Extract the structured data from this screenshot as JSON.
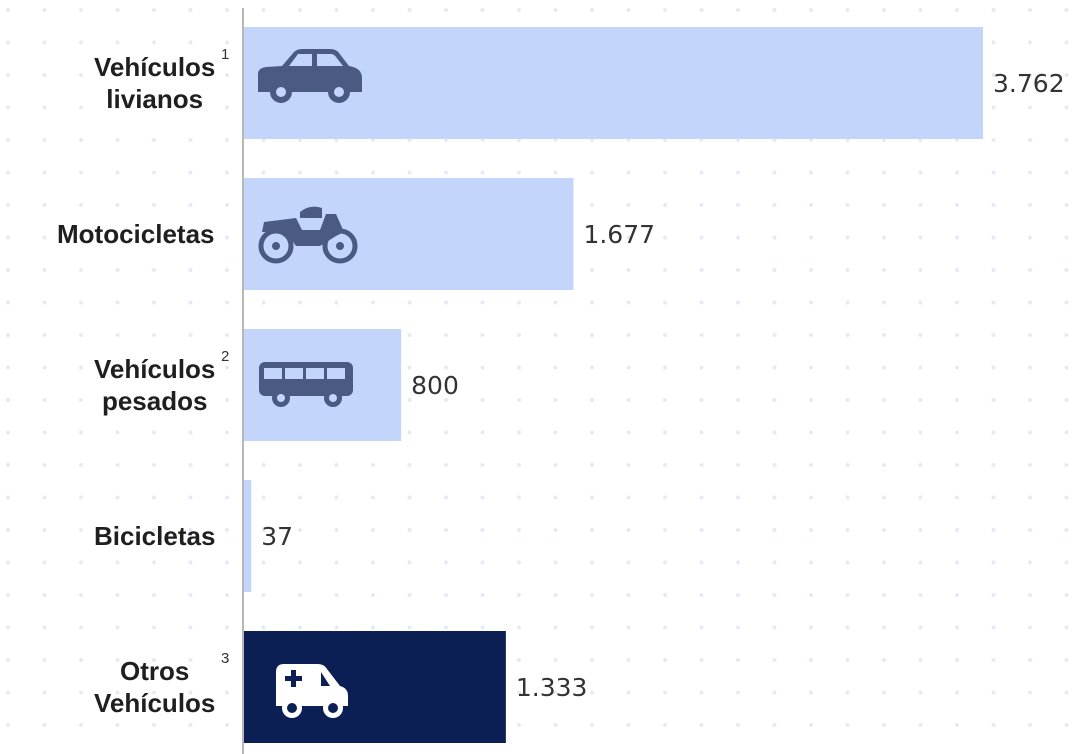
{
  "chart_data": {
    "type": "bar",
    "orientation": "horizontal",
    "categories": [
      "Vehículos livianos",
      "Motocicletas",
      "Vehículos pesados",
      "Bicicletas",
      "Otros Vehículos"
    ],
    "category_notes": [
      "1",
      null,
      "2",
      null,
      "3"
    ],
    "values": [
      3762,
      1677,
      800,
      37,
      1333
    ],
    "value_labels": [
      "3.762",
      "1.677",
      "800",
      "37",
      "1.333"
    ],
    "colors": [
      "#c3d5fb",
      "#c3d5fb",
      "#c3d5fb",
      "#c3d5fb",
      "#0b1f55"
    ],
    "xlim": [
      0,
      4000
    ]
  }
}
